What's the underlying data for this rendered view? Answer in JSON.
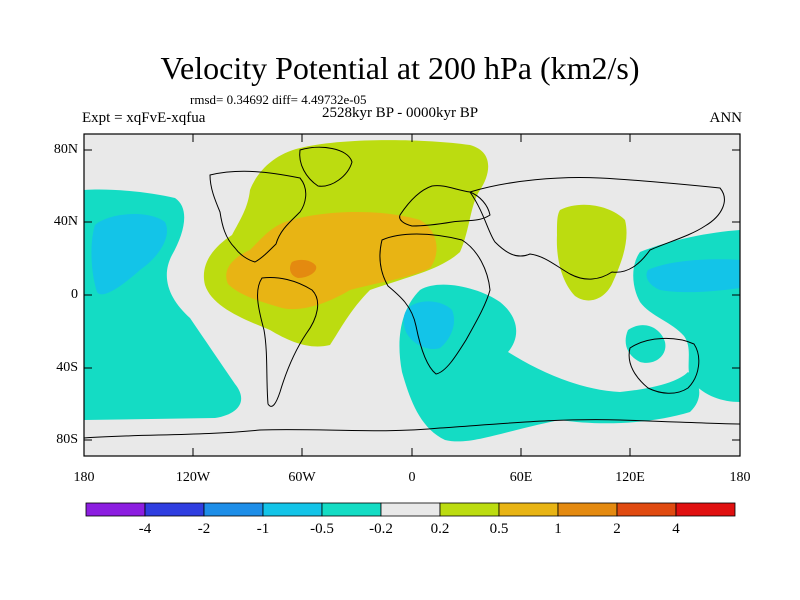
{
  "title": "Velocity Potential at 200 hPa (km2/s)",
  "stats_line": "rmsd= 0.34692 diff= 4.49732e-05",
  "experiment": "Expt = xqFvE-xqfua",
  "period": "2528kyr BP - 0000kyr BP",
  "season": "ANN",
  "lat_labels": [
    "80N",
    "40N",
    "0",
    "40S",
    "80S"
  ],
  "lon_labels": [
    "180",
    "120W",
    "60W",
    "0",
    "60E",
    "120E",
    "180"
  ],
  "colorbar": {
    "labels": [
      "-4",
      "-2",
      "-1",
      "-0.5",
      "-0.2",
      "0.2",
      "0.5",
      "1",
      "2",
      "4"
    ],
    "colors": [
      "#8c1ee0",
      "#2f3ee0",
      "#1e8ee8",
      "#13c4e8",
      "#14dcc4",
      "#e9e9e9",
      "#bcdc10",
      "#e8b414",
      "#e48a10",
      "#e04a10",
      "#e01010"
    ]
  }
}
